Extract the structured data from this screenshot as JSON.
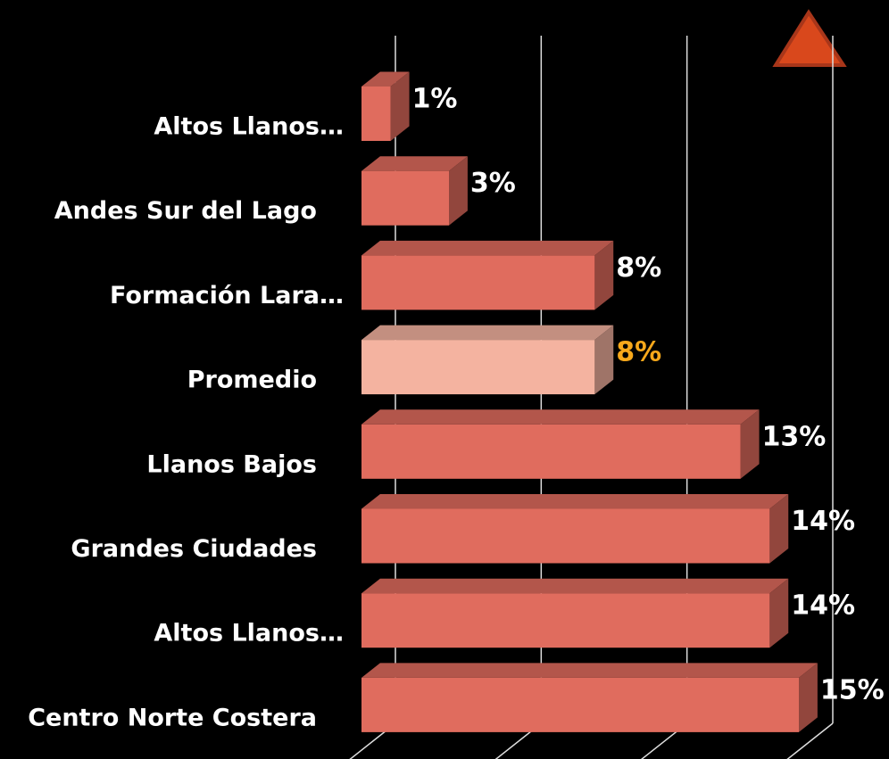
{
  "chart_data": {
    "type": "bar3d_horizontal",
    "categories": [
      "Altos Llanos…",
      "Andes Sur del Lago",
      "Formación Lara…",
      "Promedio",
      "Llanos Bajos",
      "Grandes Ciudades",
      "Altos Llanos…",
      "Centro Norte Costera"
    ],
    "values": [
      1,
      3,
      8,
      8,
      13,
      14,
      14,
      15
    ],
    "value_labels": [
      "1%",
      "3%",
      "8%",
      "8%",
      "13%",
      "14%",
      "14%",
      "15%"
    ],
    "colors": [
      "#e06c5e",
      "#e06c5e",
      "#e06c5e",
      "#f4b3a0",
      "#e06c5e",
      "#e06c5e",
      "#e06c5e",
      "#e06c5e"
    ],
    "label_colors": [
      "#ffffff",
      "#ffffff",
      "#ffffff",
      "#f7a81b",
      "#ffffff",
      "#ffffff",
      "#ffffff",
      "#ffffff"
    ],
    "xlim": [
      0,
      15
    ],
    "xticks": [
      0,
      5,
      10,
      15
    ],
    "grid": true
  }
}
